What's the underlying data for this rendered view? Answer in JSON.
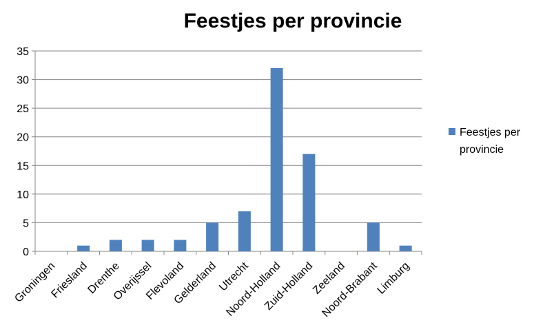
{
  "chart_data": {
    "type": "bar",
    "title": "Feestjes per provincie",
    "xlabel": "",
    "ylabel": "",
    "categories": [
      "Groningen",
      "Friesland",
      "Drenthe",
      "Overijssel",
      "Flevoland",
      "Gelderland",
      "Utrecht",
      "Noord-Holland",
      "Zuid-Holland",
      "Zeeland",
      "Noord-Brabant",
      "Limburg"
    ],
    "series": [
      {
        "name": "Feestjes per provincie",
        "values": [
          0,
          1,
          2,
          2,
          2,
          5,
          7,
          32,
          17,
          0,
          5,
          1
        ],
        "color": "#4f81bd"
      }
    ],
    "ylim": [
      0,
      35
    ],
    "yticks": [
      0,
      5,
      10,
      15,
      20,
      25,
      30,
      35
    ],
    "grid": true,
    "legend": "right",
    "legend_lines": [
      "Feestjes per",
      "provincie"
    ]
  }
}
